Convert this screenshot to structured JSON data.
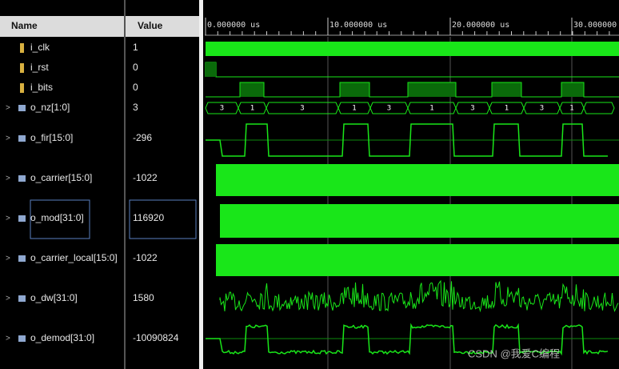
{
  "header": {
    "name": "Name",
    "value": "Value"
  },
  "signals": [
    {
      "name": "i_clk",
      "value": 1
    },
    {
      "name": "i_rst",
      "value": 0
    },
    {
      "name": "i_bits",
      "value": 0
    },
    {
      "name": "o_nz[1:0]",
      "value": 3
    },
    {
      "name": "o_fir[15:0]",
      "value": -296
    },
    {
      "name": "o_carrier[15:0]",
      "value": -1022
    },
    {
      "name": "o_mod[31:0]",
      "value": 116920
    },
    {
      "name": "o_carrier_local[15:0]",
      "value": -1022
    },
    {
      "name": "o_dw[31:0]",
      "value": 1580
    },
    {
      "name": "o_demod[31:0]",
      "value": -10090824
    }
  ],
  "ruler": [
    "0.000000 us",
    "10.000000 us",
    "20.000000 us",
    "30.000000"
  ],
  "bus_labels": [
    3,
    1,
    3,
    1,
    3,
    1,
    3,
    1,
    3,
    1
  ],
  "watermark": "CSDN @我爱C编程"
}
